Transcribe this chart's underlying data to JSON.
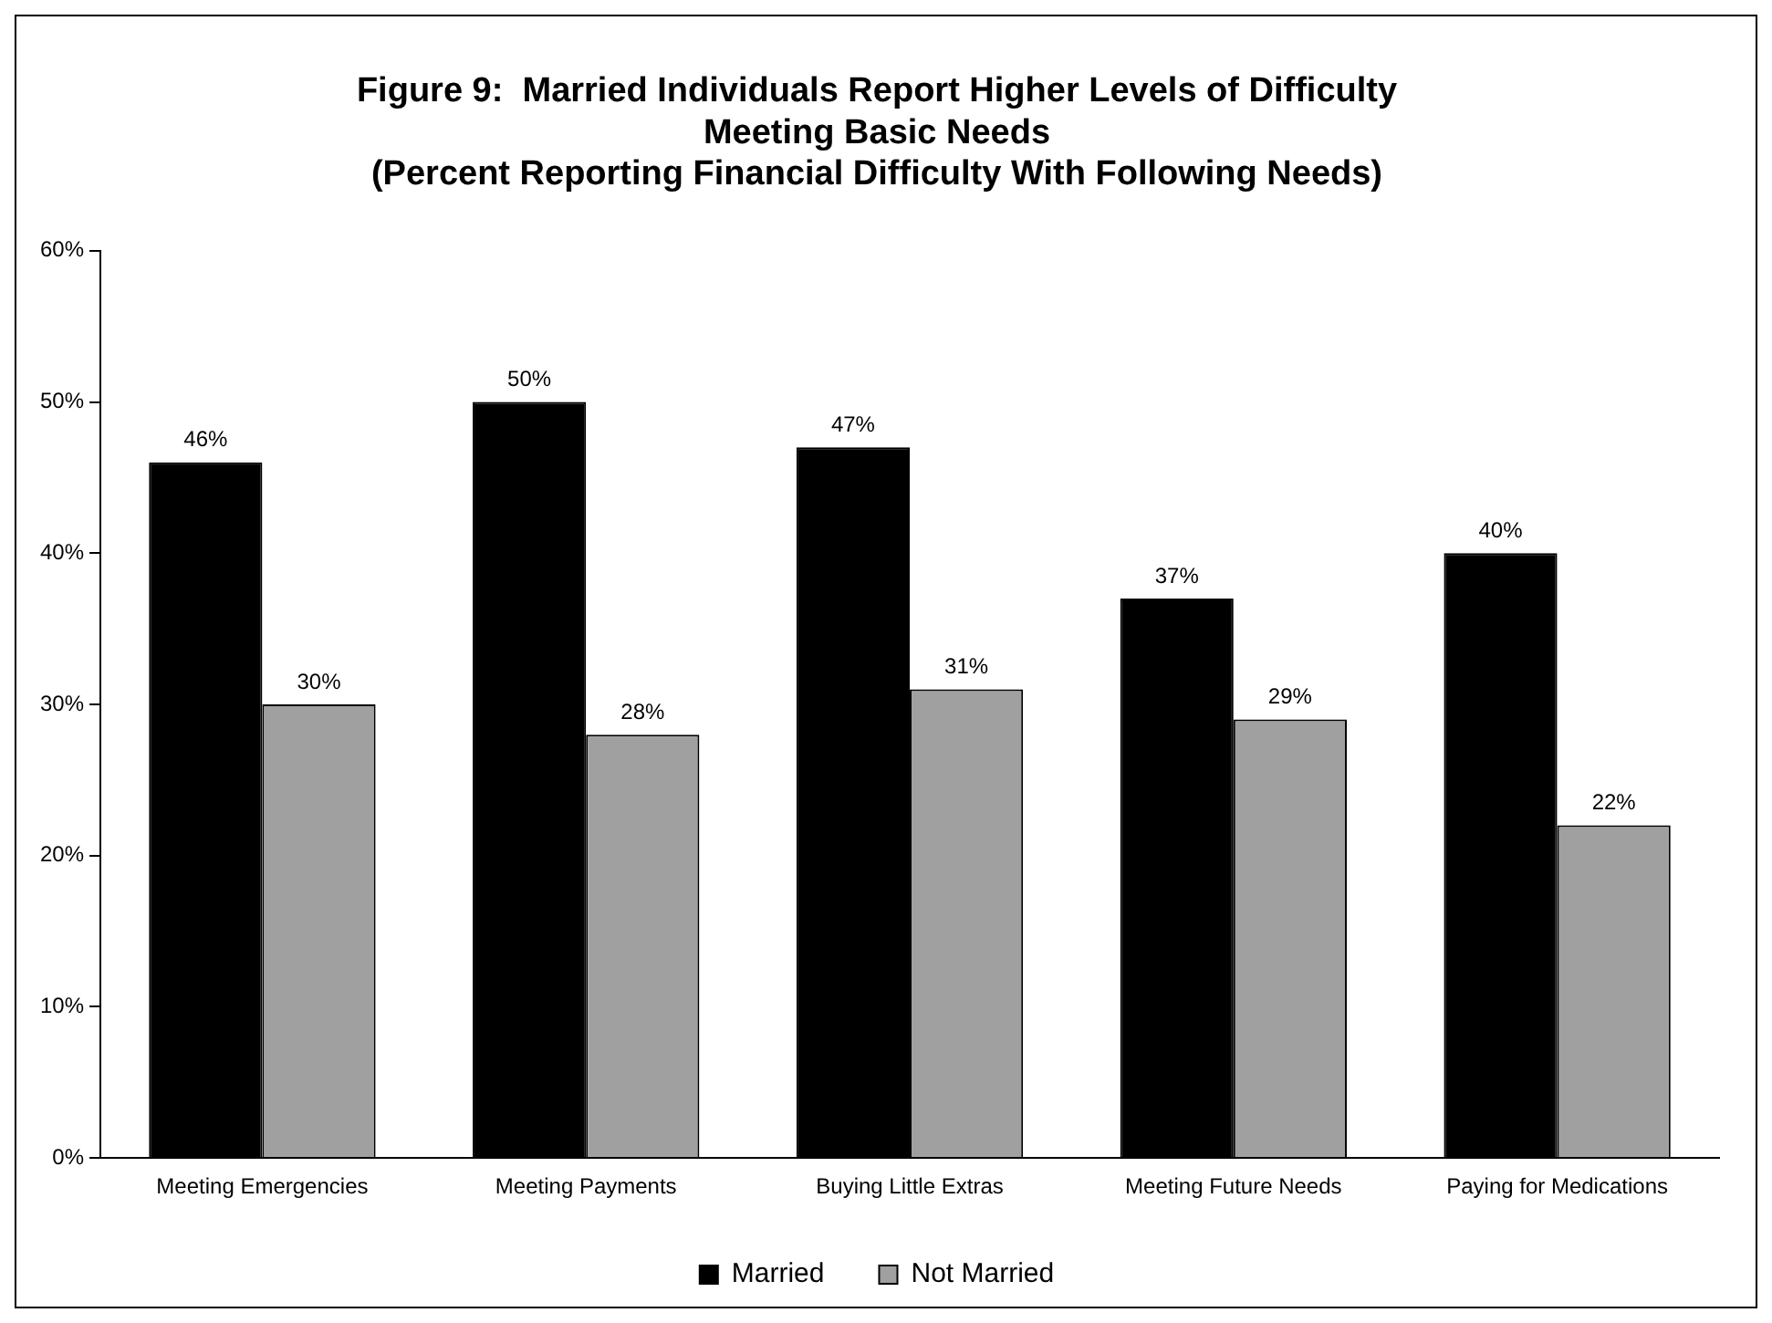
{
  "chart_data": {
    "type": "bar",
    "title": [
      "Figure 9:  Married Individuals Report Higher Levels of Difficulty",
      "Meeting Basic Needs",
      "(Percent Reporting Financial Difficulty With Following Needs)"
    ],
    "categories": [
      "Meeting Emergencies",
      "Meeting Payments",
      "Buying Little Extras",
      "Meeting Future Needs",
      "Paying for Medications"
    ],
    "series": [
      {
        "name": "Married",
        "color": "#000000",
        "values": [
          46,
          50,
          47,
          37,
          40
        ],
        "value_labels": [
          "46%",
          "50%",
          "47%",
          "37%",
          "40%"
        ]
      },
      {
        "name": "Not Married",
        "color": "#a0a0a0",
        "values": [
          30,
          28,
          31,
          29,
          22
        ],
        "value_labels": [
          "30%",
          "28%",
          "31%",
          "29%",
          "22%"
        ]
      }
    ],
    "ylim": [
      0,
      60
    ],
    "yticks": [
      {
        "value": 0,
        "label": "0%"
      },
      {
        "value": 10,
        "label": "10%"
      },
      {
        "value": 20,
        "label": "20%"
      },
      {
        "value": 30,
        "label": "30%"
      },
      {
        "value": 40,
        "label": "40%"
      },
      {
        "value": 50,
        "label": "50%"
      },
      {
        "value": 60,
        "label": "60%"
      }
    ],
    "grid": false,
    "legend": "bottom"
  }
}
